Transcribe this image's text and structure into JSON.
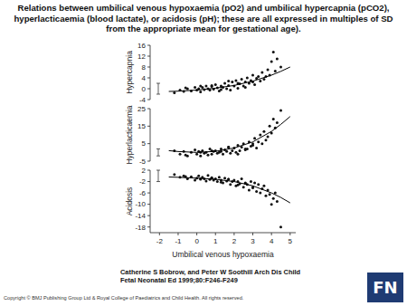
{
  "title": "Relations between umbilical venous hypoxaemia (pO2) and umbilical hypercapnia (pCO2), hyperlacticaemia (blood lactate), or acidosis (pH); these are all expressed in multiples of SD from the appropriate mean for gestational age).",
  "chart_data": [
    {
      "type": "scatter",
      "ylabel": "Hypercapnia",
      "xlim": [
        -2.5,
        5.3
      ],
      "ylim": [
        -4,
        16
      ],
      "yticks": [
        -4,
        0,
        4,
        8,
        12,
        16
      ],
      "tick_labels": "y",
      "reference_range": [
        -2,
        2
      ],
      "series": [
        {
          "type": "scatter",
          "marker": "circle",
          "color": "#111111",
          "x": [
            -1.2,
            -0.9,
            -0.7,
            -0.5,
            -0.3,
            -0.1,
            0,
            0.1,
            0.2,
            0.3,
            0.4,
            0.5,
            0.6,
            0.7,
            0.8,
            0.9,
            1.0,
            1.1,
            1.2,
            1.3,
            1.4,
            1.5,
            1.6,
            1.7,
            1.8,
            1.9,
            2.0,
            2.1,
            2.2,
            2.3,
            2.4,
            2.5,
            2.6,
            2.7,
            2.8,
            2.9,
            3.0,
            3.1,
            3.2,
            3.3,
            3.4,
            3.5,
            3.6,
            3.7,
            3.8,
            3.9,
            4.0,
            4.1,
            4.2,
            4.3,
            4.5,
            -0.6,
            0.2,
            0.8,
            1.3,
            1.7,
            2.2,
            2.6,
            3.0
          ],
          "values": [
            -1.5,
            -0.5,
            -1,
            0,
            -0.8,
            0.5,
            -0.5,
            0,
            -1.2,
            0.5,
            -0.3,
            1,
            0,
            -0.5,
            0.8,
            -0.2,
            1.5,
            0.3,
            -0.8,
            1,
            0.5,
            2,
            0,
            1.2,
            -0.5,
            2.5,
            1,
            3,
            0.2,
            1.8,
            3.5,
            1,
            2.5,
            4,
            2,
            3,
            5,
            1.5,
            3.8,
            4.5,
            2.8,
            6,
            3.5,
            4.5,
            7,
            5,
            10,
            13.5,
            6.5,
            11,
            8,
            0.3,
            1,
            1.2,
            -0.3,
            2.8,
            2,
            0.5,
            2.5
          ]
        },
        {
          "type": "line",
          "line_style": "solid",
          "color": "#000000",
          "x": [
            -1.5,
            -1,
            0,
            1,
            2,
            3,
            4,
            4.5,
            5
          ],
          "values": [
            -1,
            -0.9,
            -0.5,
            0.2,
            1.2,
            2.8,
            5,
            6.4,
            8
          ]
        }
      ]
    },
    {
      "type": "scatter",
      "ylabel": "Hyperlacticaemia",
      "xlim": [
        -2.5,
        5.3
      ],
      "ylim": [
        -5,
        25
      ],
      "yticks": [
        -5,
        5,
        15,
        25
      ],
      "tick_labels": "y",
      "reference_range": [
        -2,
        2
      ],
      "series": [
        {
          "type": "scatter",
          "marker": "circle",
          "color": "#111111",
          "x": [
            -1.2,
            -0.9,
            -0.7,
            -0.5,
            -0.3,
            -0.1,
            0,
            0.1,
            0.2,
            0.3,
            0.4,
            0.5,
            0.6,
            0.7,
            0.8,
            0.9,
            1.0,
            1.1,
            1.2,
            1.3,
            1.4,
            1.5,
            1.6,
            1.7,
            1.8,
            1.9,
            2.0,
            2.1,
            2.2,
            2.3,
            2.4,
            2.5,
            2.6,
            2.7,
            2.8,
            2.9,
            3.0,
            3.1,
            3.2,
            3.3,
            3.4,
            3.5,
            3.6,
            3.7,
            3.8,
            3.9,
            4.0,
            4.1,
            4.2,
            4.3,
            4.5,
            -0.6,
            0.2,
            0.8,
            1.3,
            1.7,
            2.2,
            2.6,
            3.0
          ],
          "values": [
            1,
            -1,
            0.5,
            -2,
            0,
            1.5,
            -1,
            0.5,
            -2,
            1,
            -0.5,
            0,
            -1.5,
            2,
            -1,
            0.5,
            1,
            -0.5,
            0,
            2,
            -1,
            1.5,
            0.5,
            3,
            -0.5,
            1,
            2.5,
            0,
            4,
            1,
            3,
            5,
            1.5,
            2,
            6,
            3.5,
            4,
            8,
            2.5,
            6,
            10,
            5,
            12,
            7,
            9,
            15,
            11,
            19,
            14,
            17,
            24,
            -1.5,
            0,
            1,
            0.5,
            3,
            -1,
            2,
            5
          ]
        },
        {
          "type": "line",
          "line_style": "solid",
          "color": "#000000",
          "x": [
            -1.5,
            -1,
            0,
            1,
            2,
            3,
            4,
            4.5,
            5
          ],
          "values": [
            1,
            0.5,
            0,
            0.6,
            2.5,
            6,
            12,
            16,
            20.5
          ]
        }
      ]
    },
    {
      "type": "scatter",
      "ylabel": "Acidosis",
      "xlabel": "Umbilical venous hypoxaemia",
      "xlim": [
        -2.5,
        5.3
      ],
      "ylim": [
        -20,
        2
      ],
      "yticks": [
        -18,
        -14,
        -10,
        -6,
        -2,
        2
      ],
      "xticks": [
        -2,
        -1,
        0,
        1,
        2,
        3,
        4,
        5
      ],
      "reference_range": [
        -2,
        2
      ],
      "series": [
        {
          "type": "scatter",
          "marker": "circle",
          "color": "#111111",
          "x": [
            -1.2,
            -0.9,
            -0.7,
            -0.5,
            -0.3,
            -0.1,
            0,
            0.1,
            0.2,
            0.3,
            0.4,
            0.5,
            0.6,
            0.7,
            0.8,
            0.9,
            1.0,
            1.1,
            1.2,
            1.3,
            1.4,
            1.5,
            1.6,
            1.7,
            1.8,
            1.9,
            2.0,
            2.1,
            2.2,
            2.3,
            2.4,
            2.5,
            2.6,
            2.7,
            2.8,
            2.9,
            3.0,
            3.1,
            3.2,
            3.3,
            3.4,
            3.5,
            3.6,
            3.7,
            3.8,
            3.9,
            4.0,
            4.1,
            4.2,
            4.3,
            4.5,
            -0.6,
            0.2,
            0.8,
            1.3,
            1.7,
            2.2,
            2.6,
            3.0
          ],
          "values": [
            0.5,
            -0.5,
            0,
            -1,
            -0.3,
            -1.5,
            -0.8,
            0,
            -1.2,
            -0.5,
            -1,
            -1.8,
            0.2,
            -1.3,
            -0.6,
            -1.5,
            -1,
            -2,
            -0.5,
            -1.5,
            -2.5,
            -0.8,
            -1.8,
            -1.2,
            -3,
            -2,
            -1.5,
            -3.5,
            -2,
            -2.8,
            -1,
            -4,
            -2.5,
            -3,
            -5,
            -2,
            -4,
            -2.5,
            -5.5,
            -3,
            -6,
            -4.5,
            -3.5,
            -7,
            -5,
            -6.5,
            -10,
            -8,
            -6,
            -9,
            -18,
            -0.2,
            -1,
            -0.8,
            -2.2,
            -1.2,
            -3.2,
            -2.6,
            -4.2
          ]
        },
        {
          "type": "line",
          "line_style": "solid",
          "color": "#000000",
          "x": [
            -1.5,
            -1,
            0,
            1,
            2,
            3,
            4,
            4.5,
            5
          ],
          "values": [
            -0.4,
            -0.5,
            -0.8,
            -1.2,
            -2,
            -3.5,
            -6,
            -7.6,
            -9.5
          ]
        }
      ]
    }
  ],
  "caption": "Catherine S Bobrow, and Peter W Soothill Arch Dis Child Fetal Neonatal Ed 1999;80:F246-F249",
  "copyright": "Copyright © BMJ Publishing Group Ltd & Royal College of Paediatrics and Child Health. All rights reserved.",
  "logo": "FN"
}
